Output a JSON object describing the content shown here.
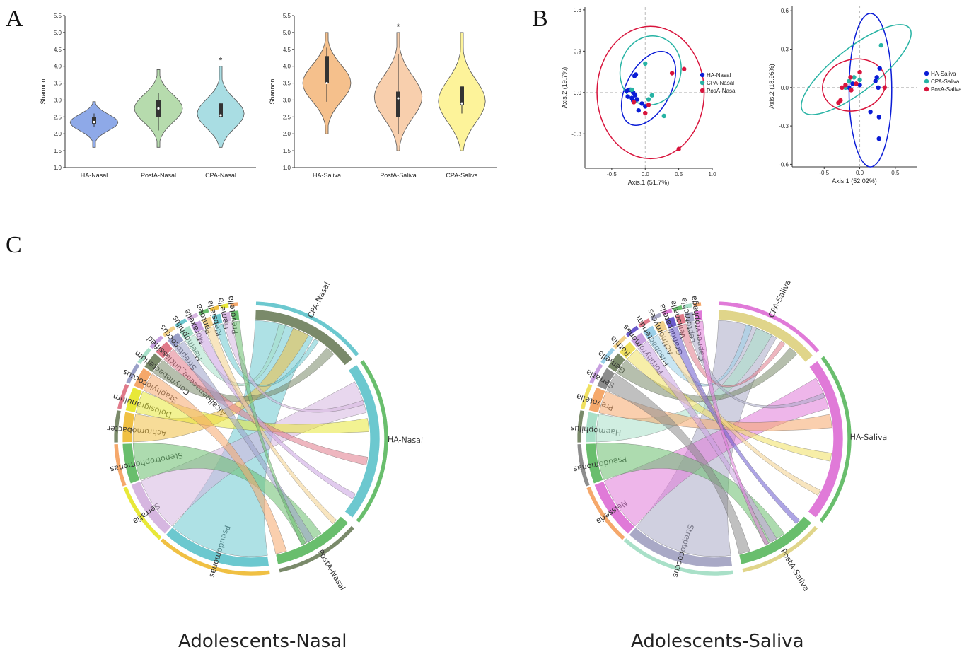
{
  "panels": {
    "A": "A",
    "B": "B",
    "C": "C"
  },
  "titles": {
    "nasal": "Adolescents-Nasal",
    "saliva": "Adolescents-Saliva"
  },
  "colors": {
    "ha_nasal": "#8ea9e8",
    "posta_nasal": "#b6dbad",
    "cpa_nasal": "#a9dde3",
    "ha_saliva": "#f5c08c",
    "posta_saliva": "#f8cfad",
    "cpa_saliva": "#fdf39a",
    "pcoa_ha": "#0a1cd6",
    "pcoa_cpa": "#27b3a4",
    "pcoa_pos": "#d8143c"
  },
  "chart_data": [
    {
      "type": "violin",
      "ylabel": "Shannon",
      "ylim": [
        1.0,
        5.5
      ],
      "yticks": [
        "1.0",
        "1.5",
        "2.0",
        "2.5",
        "3.0",
        "3.5",
        "4.0",
        "4.5",
        "5.0",
        "5.5"
      ],
      "categories": [
        "HA-Nasal",
        "PostA-Nasal",
        "CPA-Nasal"
      ],
      "medians": [
        2.35,
        2.75,
        2.55
      ],
      "q1": [
        2.3,
        2.5,
        2.5
      ],
      "q3": [
        2.5,
        3.0,
        2.9
      ],
      "whisker_low": [
        2.2,
        2.1,
        2.5
      ],
      "whisker_high": [
        2.6,
        3.2,
        2.9
      ],
      "range": [
        [
          1.6,
          2.95
        ],
        [
          1.6,
          3.9
        ],
        [
          1.6,
          4.0
        ]
      ],
      "annotations": [
        "",
        "",
        "*"
      ]
    },
    {
      "type": "violin",
      "ylabel": "Shannon",
      "ylim": [
        1.0,
        5.5
      ],
      "yticks": [
        "1.0",
        "1.5",
        "2.0",
        "2.5",
        "3.0",
        "3.5",
        "4.0",
        "4.5",
        "5.0",
        "5.5"
      ],
      "categories": [
        "HA-Saliva",
        "PostA-Saliva",
        "CPA-Saliva"
      ],
      "medians": [
        3.5,
        3.05,
        2.9
      ],
      "q1": [
        3.5,
        2.5,
        2.85
      ],
      "q3": [
        4.3,
        3.25,
        3.4
      ],
      "whisker_low": [
        2.95,
        2.0,
        2.6
      ],
      "whisker_high": [
        4.55,
        4.35,
        3.4
      ],
      "range": [
        [
          2.0,
          5.0
        ],
        [
          1.5,
          5.0
        ],
        [
          1.5,
          5.0
        ]
      ],
      "annotations": [
        "",
        "*",
        ""
      ]
    },
    {
      "type": "scatter",
      "xlabel": "Axis.1 (51.7%)",
      "ylabel": "Axis.2 (19.7%)",
      "xlim": [
        -0.9,
        1.0
      ],
      "ylim": [
        -0.55,
        0.62
      ],
      "xticks": [
        "-0.5",
        "0.0",
        "0.5",
        "1.0"
      ],
      "yticks": [
        "-0.3",
        "0.0",
        "0.3",
        "0.6"
      ],
      "series": [
        {
          "name": "HA-Nasal",
          "x": [
            -0.28,
            -0.22,
            -0.2,
            -0.18,
            -0.16,
            -0.14,
            -0.26,
            -0.12,
            -0.1,
            -0.05,
            0.0,
            -0.18,
            -0.24,
            -0.15
          ],
          "y": [
            0.01,
            0.02,
            -0.04,
            0.0,
            0.12,
            0.13,
            -0.03,
            -0.05,
            -0.13,
            -0.08,
            -0.1,
            -0.06,
            0.02,
            -0.02
          ]
        },
        {
          "name": "CPA-Nasal",
          "x": [
            0.0,
            0.1,
            0.28,
            -0.2,
            0.05
          ],
          "y": [
            0.21,
            -0.02,
            -0.17,
            0.02,
            -0.05
          ]
        },
        {
          "name": "PosA-Nasal",
          "x": [
            0.4,
            0.58,
            0.05,
            0.0,
            0.5,
            -0.17
          ],
          "y": [
            0.14,
            0.17,
            -0.09,
            -0.15,
            -0.41,
            -0.07
          ]
        }
      ],
      "ellipses": [
        {
          "series": "HA-Nasal",
          "cx": 0.05,
          "cy": 0.03,
          "rx": 0.6,
          "ry": 0.16,
          "rot": -62
        },
        {
          "series": "CPA-Nasal",
          "cx": 0.08,
          "cy": 0.16,
          "rx": 0.52,
          "ry": 0.22,
          "rot": -76
        },
        {
          "series": "PosA-Nasal",
          "cx": 0.08,
          "cy": 0.0,
          "rx": 0.8,
          "ry": 0.48,
          "rot": 0
        }
      ],
      "legend": "right"
    },
    {
      "type": "scatter",
      "xlabel": "Axis.1 (52.02%)",
      "ylabel": "Axis.2 (18.96%)",
      "xlim": [
        -0.95,
        0.8
      ],
      "ylim": [
        -0.62,
        0.64
      ],
      "xticks": [
        "-0.5",
        "0.0",
        "0.5"
      ],
      "yticks": [
        "-0.6",
        "-0.3",
        "0.0",
        "0.3",
        "0.6"
      ],
      "series": [
        {
          "name": "HA-Saliva",
          "x": [
            0.28,
            0.22,
            0.24,
            0.26,
            0.15,
            0.27,
            0.27,
            0.0,
            -0.15,
            -0.1
          ],
          "y": [
            0.15,
            0.05,
            0.08,
            0.0,
            -0.19,
            -0.23,
            -0.4,
            0.02,
            0.0,
            0.03
          ]
        },
        {
          "name": "CPA-Saliva",
          "x": [
            0.3,
            -0.08,
            -0.15,
            -0.2,
            0.0
          ],
          "y": [
            0.33,
            0.08,
            0.05,
            0.0,
            0.06
          ]
        },
        {
          "name": "PosA-Saliva",
          "x": [
            -0.27,
            -0.25,
            -0.2,
            -0.13,
            -0.12,
            0.0,
            0.35,
            -0.3,
            -0.05
          ],
          "y": [
            -0.1,
            0.0,
            0.02,
            0.08,
            -0.02,
            0.12,
            0.0,
            -0.12,
            0.03
          ]
        }
      ],
      "ellipses": [
        {
          "series": "HA-Saliva",
          "cx": 0.15,
          "cy": -0.02,
          "rx": 0.3,
          "ry": 0.6,
          "rot": 0
        },
        {
          "series": "CPA-Saliva",
          "cx": -0.05,
          "cy": 0.14,
          "rx": 0.95,
          "ry": 0.17,
          "rot": -38
        },
        {
          "series": "PosA-Saliva",
          "cx": -0.08,
          "cy": 0.02,
          "rx": 0.45,
          "ry": 0.2,
          "rot": -15
        }
      ],
      "legend": "right"
    }
  ],
  "chord_nasal": {
    "groups": [
      "CPA-Nasal",
      "HA-Nasal",
      "PostA-Nasal"
    ],
    "taxa": [
      "Pseudomonas",
      "Serratia",
      "Stenotrophomonas",
      "Achromobacter",
      "Dolosigranulum",
      "Staphylococcus",
      "Corynebacterium",
      "Alcaligenaceae_unclassified",
      "Streptococcus",
      "Haemophilus",
      "Moraxella",
      "Pantoea",
      "Klebsiella",
      "Gemella",
      "Prevotella"
    ]
  },
  "chord_saliva": {
    "groups": [
      "CPA-Saliva",
      "HA-Saliva",
      "PostA-Saliva"
    ],
    "taxa": [
      "Streptococcus",
      "Neisseria",
      "Pseudomonas",
      "Haemophilus",
      "Prevotella",
      "Serratia",
      "Gemella",
      "Rothia",
      "Porphyromonas",
      "Fusobacterium",
      "Actinomyces",
      "Granulicatella",
      "Veillonella",
      "Leptotrichia",
      "Capnocytophaga"
    ]
  }
}
